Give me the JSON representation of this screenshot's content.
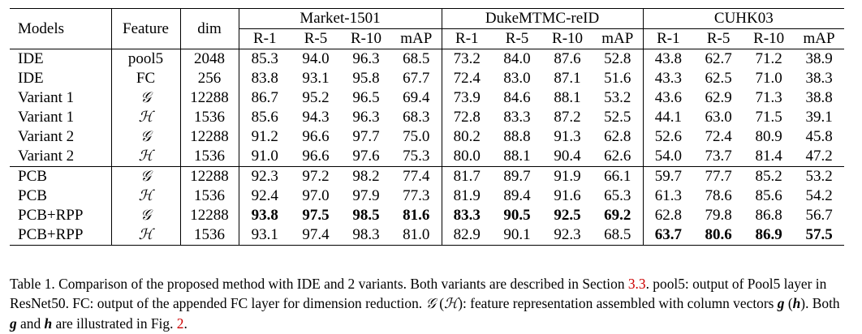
{
  "table": {
    "col_models": "Models",
    "col_feature": "Feature",
    "col_dim": "dim",
    "datasets": [
      "Market-1501",
      "DukeMTMC-reID",
      "CUHK03"
    ],
    "metrics": [
      "R-1",
      "R-5",
      "R-10",
      "mAP"
    ],
    "rows": [
      {
        "model": "IDE",
        "feature": "pool5",
        "dim": "2048",
        "values": [
          "85.3",
          "94.0",
          "96.3",
          "68.5",
          "73.2",
          "84.0",
          "87.6",
          "52.8",
          "43.8",
          "62.7",
          "71.2",
          "38.9"
        ],
        "bold": []
      },
      {
        "model": "IDE",
        "feature": "FC",
        "dim": "256",
        "values": [
          "83.8",
          "93.1",
          "95.8",
          "67.7",
          "72.4",
          "83.0",
          "87.1",
          "51.6",
          "43.3",
          "62.5",
          "71.0",
          "38.3"
        ],
        "bold": []
      },
      {
        "model": "Variant 1",
        "feature": "𝒢",
        "dim": "12288",
        "values": [
          "86.7",
          "95.2",
          "96.5",
          "69.4",
          "73.9",
          "84.6",
          "88.1",
          "53.2",
          "43.6",
          "62.9",
          "71.3",
          "38.8"
        ],
        "bold": []
      },
      {
        "model": "Variant 1",
        "feature": "ℋ",
        "dim": "1536",
        "values": [
          "85.6",
          "94.3",
          "96.3",
          "68.3",
          "72.8",
          "83.3",
          "87.2",
          "52.5",
          "44.1",
          "63.0",
          "71.5",
          "39.1"
        ],
        "bold": []
      },
      {
        "model": "Variant 2",
        "feature": "𝒢",
        "dim": "12288",
        "values": [
          "91.2",
          "96.6",
          "97.7",
          "75.0",
          "80.2",
          "88.8",
          "91.3",
          "62.8",
          "52.6",
          "72.4",
          "80.9",
          "45.8"
        ],
        "bold": []
      },
      {
        "model": "Variant 2",
        "feature": "ℋ",
        "dim": "1536",
        "values": [
          "91.0",
          "96.6",
          "97.6",
          "75.3",
          "80.0",
          "88.1",
          "90.4",
          "62.6",
          "54.0",
          "73.7",
          "81.4",
          "47.2"
        ],
        "bold": []
      },
      {
        "model": "PCB",
        "feature": "𝒢",
        "dim": "12288",
        "values": [
          "92.3",
          "97.2",
          "98.2",
          "77.4",
          "81.7",
          "89.7",
          "91.9",
          "66.1",
          "59.7",
          "77.7",
          "85.2",
          "53.2"
        ],
        "bold": []
      },
      {
        "model": "PCB",
        "feature": "ℋ",
        "dim": "1536",
        "values": [
          "92.4",
          "97.0",
          "97.9",
          "77.3",
          "81.9",
          "89.4",
          "91.6",
          "65.3",
          "61.3",
          "78.6",
          "85.6",
          "54.2"
        ],
        "bold": []
      },
      {
        "model": "PCB+RPP",
        "feature": "𝒢",
        "dim": "12288",
        "values": [
          "93.8",
          "97.5",
          "98.5",
          "81.6",
          "83.3",
          "90.5",
          "92.5",
          "69.2",
          "62.8",
          "79.8",
          "86.8",
          "56.7"
        ],
        "bold": [
          0,
          1,
          2,
          3,
          4,
          5,
          6,
          7
        ]
      },
      {
        "model": "PCB+RPP",
        "feature": "ℋ",
        "dim": "1536",
        "values": [
          "93.1",
          "97.4",
          "98.3",
          "81.0",
          "82.9",
          "90.1",
          "92.3",
          "68.5",
          "63.7",
          "80.6",
          "86.9",
          "57.5"
        ],
        "bold": [
          8,
          9,
          10,
          11
        ]
      }
    ]
  },
  "caption": {
    "p1": "Table 1. Comparison of the proposed method with IDE and 2 variants. Both variants are described in Section ",
    "ref1": "3.3",
    "p2": ". pool5: output of Pool5 layer in ResNet50. FC: output of the appended FC layer for dimension reduction. ",
    "symG": "𝒢",
    "p3": " (",
    "symH": "ℋ",
    "p4": "): feature representation assembled with column vectors ",
    "g": "g",
    "p5": " (",
    "h": "h",
    "p6": "). Both ",
    "g2": "g",
    "p7": " and ",
    "h2": "h",
    "p8": " are illustrated in Fig. ",
    "ref2": "2",
    "p9": "."
  }
}
